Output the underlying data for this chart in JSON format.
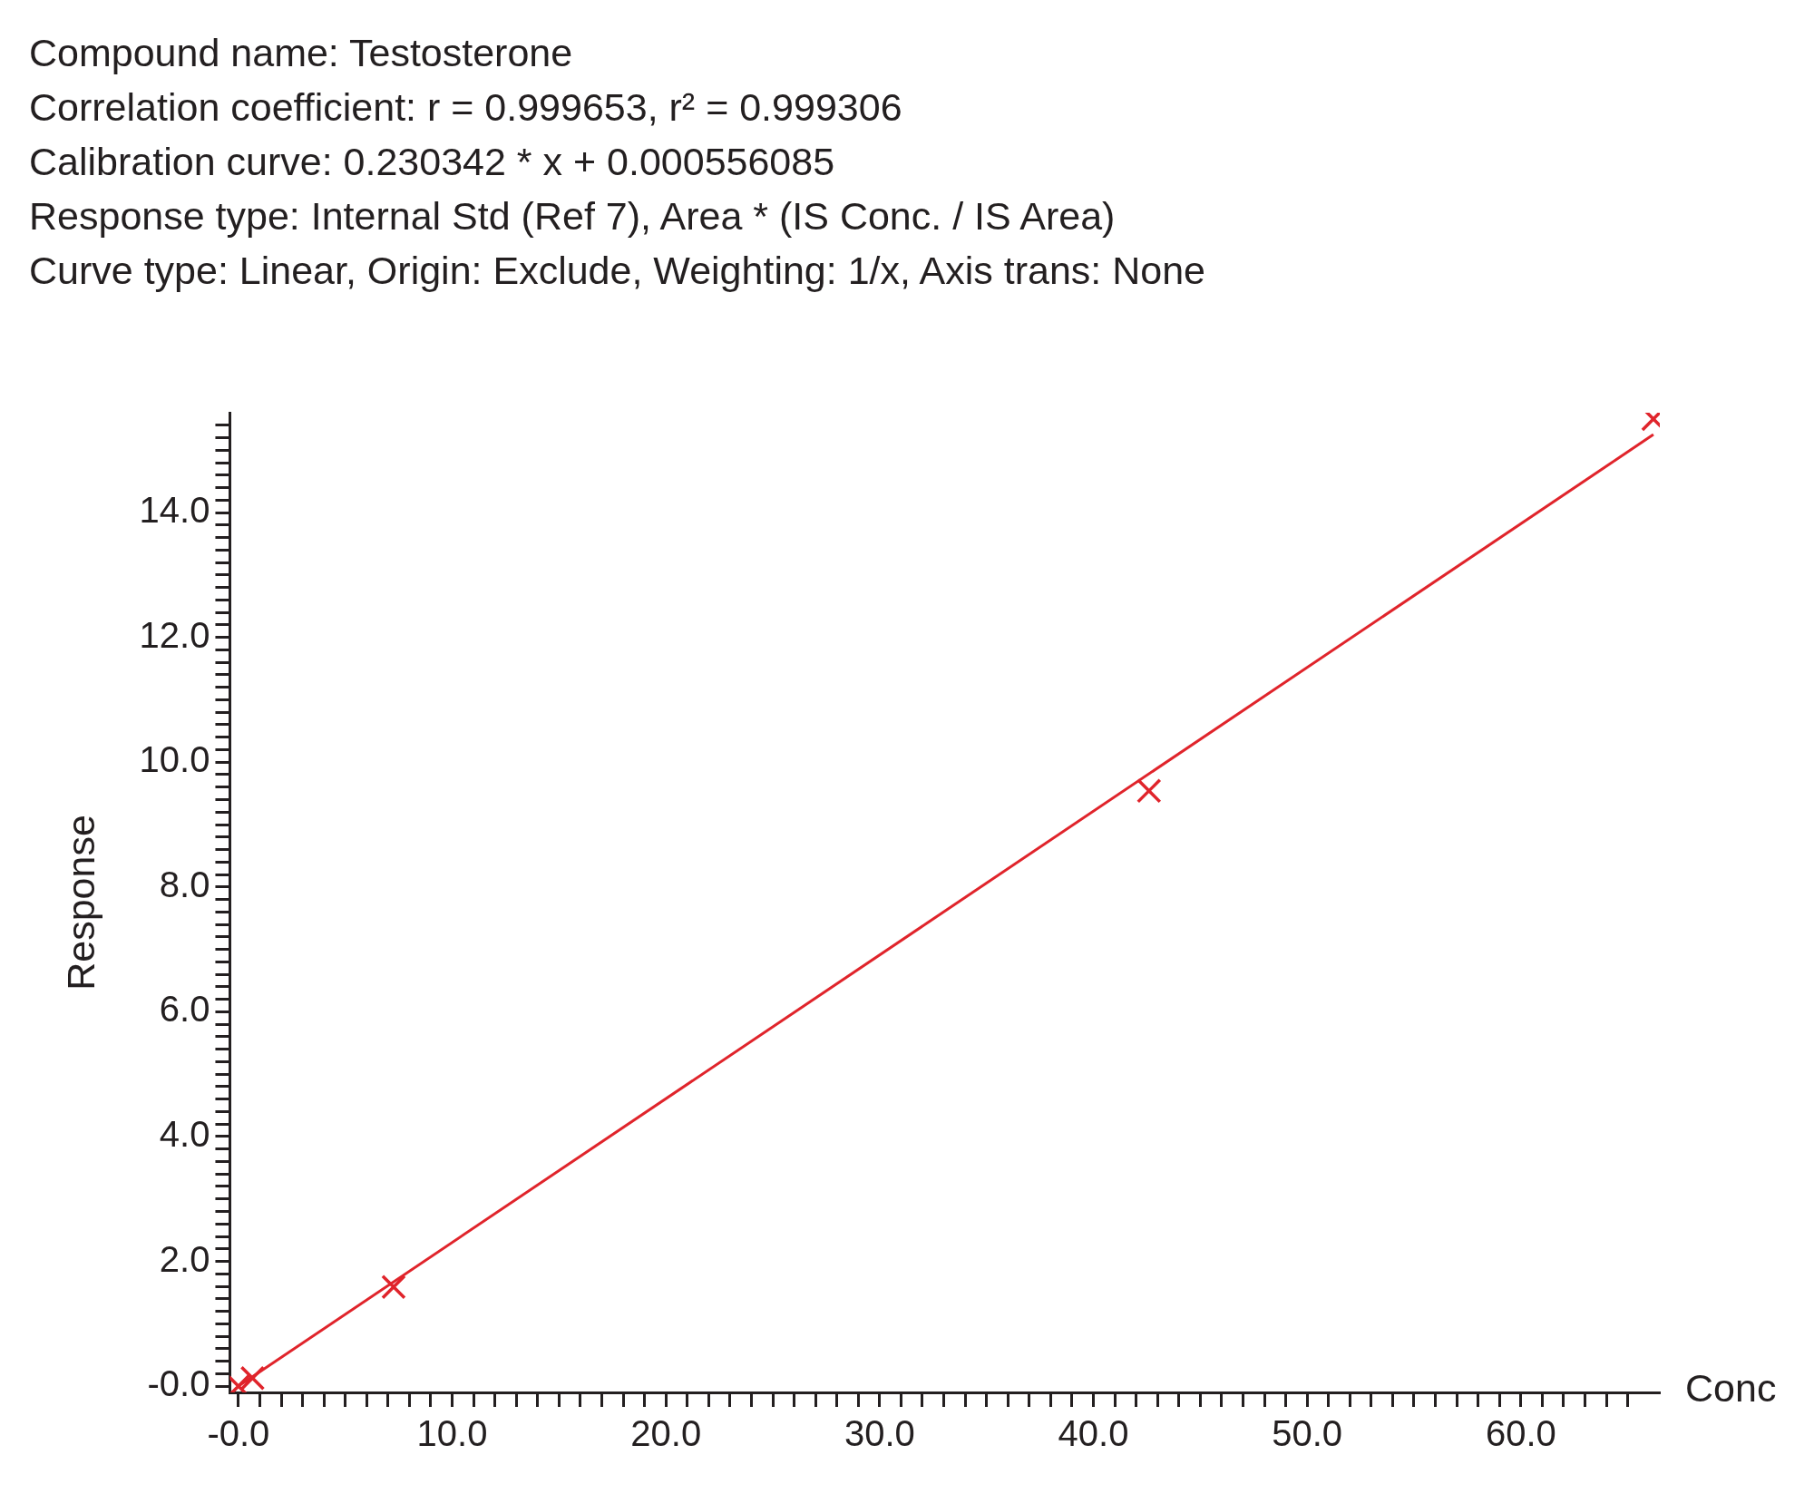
{
  "chart_data": {
    "type": "scatter",
    "title": "Compound name: Testosterone",
    "annotations": [
      "Correlation coefficient: r = 0.999653, r² = 0.999306",
      "Calibration curve: 0.230342 * x + 0.000556085",
      "Response type: Internal Std (Ref 7), Area * (IS Conc. / IS Area)",
      "Curve type: Linear, Origin: Exclude, Weighting: 1/x, Axis trans: None"
    ],
    "xlabel": "Conc",
    "ylabel": "Response",
    "series": [
      {
        "marker": "cross",
        "color": "#e0242b",
        "x": [
          0,
          0.66,
          7.26,
          42.6,
          66.2
        ],
        "values": [
          0,
          0.13,
          1.59,
          9.54,
          15.5
        ]
      },
      {
        "type": "line",
        "color": "#e0242b",
        "x": [
          0,
          66.2
        ],
        "values": [
          0,
          15.25
        ]
      }
    ],
    "xlim": [
      -0.4,
      66.5
    ],
    "ylim": [
      -0.1,
      15.6
    ],
    "xticks": [
      {
        "value": 0,
        "label": "-0.0"
      },
      {
        "value": 1,
        "label": null
      },
      {
        "value": 2,
        "label": null
      },
      {
        "value": 3,
        "label": null
      },
      {
        "value": 4,
        "label": null
      },
      {
        "value": 5,
        "label": null
      },
      {
        "value": 6,
        "label": null
      },
      {
        "value": 7,
        "label": null
      },
      {
        "value": 8,
        "label": null
      },
      {
        "value": 9,
        "label": null
      },
      {
        "value": 10,
        "label": "10.0"
      },
      {
        "value": 11,
        "label": null
      },
      {
        "value": 12,
        "label": null
      },
      {
        "value": 13,
        "label": null
      },
      {
        "value": 14,
        "label": null
      },
      {
        "value": 15,
        "label": null
      },
      {
        "value": 16,
        "label": null
      },
      {
        "value": 17,
        "label": null
      },
      {
        "value": 18,
        "label": null
      },
      {
        "value": 19,
        "label": null
      },
      {
        "value": 20,
        "label": "20.0"
      },
      {
        "value": 21,
        "label": null
      },
      {
        "value": 22,
        "label": null
      },
      {
        "value": 23,
        "label": null
      },
      {
        "value": 24,
        "label": null
      },
      {
        "value": 25,
        "label": null
      },
      {
        "value": 26,
        "label": null
      },
      {
        "value": 27,
        "label": null
      },
      {
        "value": 28,
        "label": null
      },
      {
        "value": 29,
        "label": null
      },
      {
        "value": 30,
        "label": "30.0"
      },
      {
        "value": 31,
        "label": null
      },
      {
        "value": 32,
        "label": null
      },
      {
        "value": 33,
        "label": null
      },
      {
        "value": 34,
        "label": null
      },
      {
        "value": 35,
        "label": null
      },
      {
        "value": 36,
        "label": null
      },
      {
        "value": 37,
        "label": null
      },
      {
        "value": 38,
        "label": null
      },
      {
        "value": 39,
        "label": null
      },
      {
        "value": 40,
        "label": "40.0"
      },
      {
        "value": 41,
        "label": null
      },
      {
        "value": 42,
        "label": null
      },
      {
        "value": 43,
        "label": null
      },
      {
        "value": 44,
        "label": null
      },
      {
        "value": 45,
        "label": null
      },
      {
        "value": 46,
        "label": null
      },
      {
        "value": 47,
        "label": null
      },
      {
        "value": 48,
        "label": null
      },
      {
        "value": 49,
        "label": null
      },
      {
        "value": 50,
        "label": "50.0"
      },
      {
        "value": 51,
        "label": null
      },
      {
        "value": 52,
        "label": null
      },
      {
        "value": 53,
        "label": null
      },
      {
        "value": 54,
        "label": null
      },
      {
        "value": 55,
        "label": null
      },
      {
        "value": 56,
        "label": null
      },
      {
        "value": 57,
        "label": null
      },
      {
        "value": 58,
        "label": null
      },
      {
        "value": 59,
        "label": null
      },
      {
        "value": 60,
        "label": "60.0"
      },
      {
        "value": 61,
        "label": null
      },
      {
        "value": 62,
        "label": null
      },
      {
        "value": 63,
        "label": null
      },
      {
        "value": 64,
        "label": null
      },
      {
        "value": 65,
        "label": null
      }
    ],
    "yticks": [
      {
        "value": 0,
        "label": "-0.0"
      },
      {
        "value": 0.2,
        "label": null
      },
      {
        "value": 0.4,
        "label": null
      },
      {
        "value": 0.6,
        "label": null
      },
      {
        "value": 0.8,
        "label": null
      },
      {
        "value": 1,
        "label": null
      },
      {
        "value": 1.2,
        "label": null
      },
      {
        "value": 1.4,
        "label": null
      },
      {
        "value": 1.6,
        "label": null
      },
      {
        "value": 1.8,
        "label": null
      },
      {
        "value": 2,
        "label": "2.0"
      },
      {
        "value": 2.2,
        "label": null
      },
      {
        "value": 2.4,
        "label": null
      },
      {
        "value": 2.6,
        "label": null
      },
      {
        "value": 2.8,
        "label": null
      },
      {
        "value": 3,
        "label": null
      },
      {
        "value": 3.2,
        "label": null
      },
      {
        "value": 3.4,
        "label": null
      },
      {
        "value": 3.6,
        "label": null
      },
      {
        "value": 3.8,
        "label": null
      },
      {
        "value": 4,
        "label": "4.0"
      },
      {
        "value": 4.2,
        "label": null
      },
      {
        "value": 4.4,
        "label": null
      },
      {
        "value": 4.6,
        "label": null
      },
      {
        "value": 4.8,
        "label": null
      },
      {
        "value": 5,
        "label": null
      },
      {
        "value": 5.2,
        "label": null
      },
      {
        "value": 5.4,
        "label": null
      },
      {
        "value": 5.6,
        "label": null
      },
      {
        "value": 5.8,
        "label": null
      },
      {
        "value": 6,
        "label": "6.0"
      },
      {
        "value": 6.2,
        "label": null
      },
      {
        "value": 6.4,
        "label": null
      },
      {
        "value": 6.6,
        "label": null
      },
      {
        "value": 6.8,
        "label": null
      },
      {
        "value": 7,
        "label": null
      },
      {
        "value": 7.2,
        "label": null
      },
      {
        "value": 7.4,
        "label": null
      },
      {
        "value": 7.6,
        "label": null
      },
      {
        "value": 7.8,
        "label": null
      },
      {
        "value": 8,
        "label": "8.0"
      },
      {
        "value": 8.2,
        "label": null
      },
      {
        "value": 8.4,
        "label": null
      },
      {
        "value": 8.6,
        "label": null
      },
      {
        "value": 8.8,
        "label": null
      },
      {
        "value": 9,
        "label": null
      },
      {
        "value": 9.2,
        "label": null
      },
      {
        "value": 9.4,
        "label": null
      },
      {
        "value": 9.6,
        "label": null
      },
      {
        "value": 9.8,
        "label": null
      },
      {
        "value": 10,
        "label": "10.0"
      },
      {
        "value": 10.2,
        "label": null
      },
      {
        "value": 10.4,
        "label": null
      },
      {
        "value": 10.6,
        "label": null
      },
      {
        "value": 10.8,
        "label": null
      },
      {
        "value": 11,
        "label": null
      },
      {
        "value": 11.2,
        "label": null
      },
      {
        "value": 11.4,
        "label": null
      },
      {
        "value": 11.6,
        "label": null
      },
      {
        "value": 11.8,
        "label": null
      },
      {
        "value": 12,
        "label": "12.0"
      },
      {
        "value": 12.2,
        "label": null
      },
      {
        "value": 12.4,
        "label": null
      },
      {
        "value": 12.6,
        "label": null
      },
      {
        "value": 12.8,
        "label": null
      },
      {
        "value": 13,
        "label": null
      },
      {
        "value": 13.2,
        "label": null
      },
      {
        "value": 13.4,
        "label": null
      },
      {
        "value": 13.6,
        "label": null
      },
      {
        "value": 13.8,
        "label": null
      },
      {
        "value": 14,
        "label": "14.0"
      },
      {
        "value": 14.2,
        "label": null
      },
      {
        "value": 14.4,
        "label": null
      },
      {
        "value": 14.6,
        "label": null
      },
      {
        "value": 14.8,
        "label": null
      },
      {
        "value": 15,
        "label": null
      },
      {
        "value": 15.2,
        "label": null
      },
      {
        "value": 15.4,
        "label": null
      }
    ]
  }
}
